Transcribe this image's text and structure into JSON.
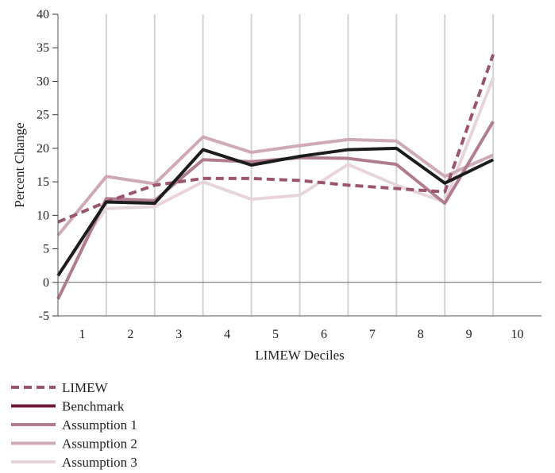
{
  "chart_data": {
    "type": "line",
    "title": "",
    "xlabel": "LIMEW Deciles",
    "ylabel": "Percent Change",
    "categories": [
      "1",
      "2",
      "3",
      "4",
      "5",
      "6",
      "7",
      "8",
      "9",
      "10"
    ],
    "ylim": [
      -5,
      40
    ],
    "yticks": [
      -5,
      0,
      5,
      10,
      15,
      20,
      25,
      30,
      35,
      40
    ],
    "grid": true,
    "legend_position": "bottom-left",
    "series": [
      {
        "name": "LIMEW",
        "color": "#9b5570",
        "dash": true,
        "values": [
          9.0,
          12.0,
          14.5,
          15.5,
          15.5,
          15.2,
          14.5,
          14.0,
          13.5,
          34.0
        ]
      },
      {
        "name": "Benchmark",
        "color": "#1c1c1c",
        "dash": false,
        "legend_color": "#6e1a35",
        "values": [
          1.0,
          12.0,
          11.8,
          19.8,
          17.5,
          18.8,
          19.8,
          20.0,
          14.8,
          18.3
        ]
      },
      {
        "name": "Assumption 1",
        "color": "#b07c91",
        "dash": false,
        "values": [
          -2.5,
          12.5,
          12.2,
          18.3,
          18.0,
          18.6,
          18.5,
          17.6,
          11.8,
          24.0
        ]
      },
      {
        "name": "Assumption 2",
        "color": "#cfa9b7",
        "dash": false,
        "values": [
          7.0,
          15.8,
          14.7,
          21.7,
          19.4,
          20.4,
          21.3,
          21.1,
          15.8,
          19.0
        ]
      },
      {
        "name": "Assumption 3",
        "color": "#e8d5dc",
        "dash": false,
        "values": [
          1.0,
          11.0,
          11.3,
          15.0,
          12.4,
          13.0,
          17.6,
          14.5,
          12.0,
          30.5
        ]
      }
    ]
  }
}
